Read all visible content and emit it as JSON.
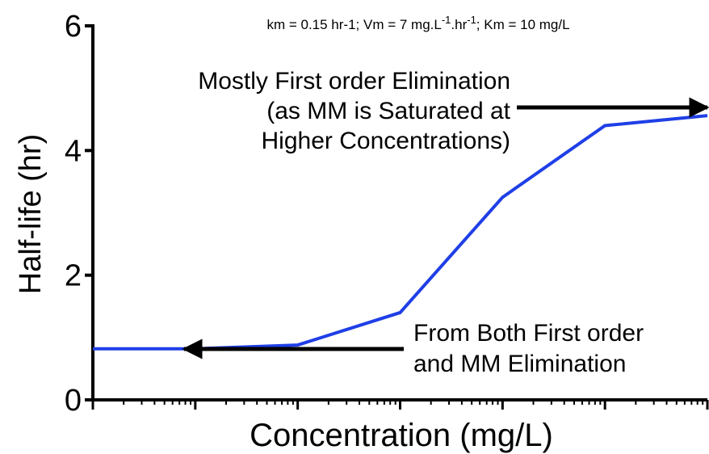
{
  "chart_data": {
    "type": "line",
    "subtitle_parts": [
      "km = 0.15 hr-1; Vm = 7 mg.L",
      "-1",
      ".hr",
      "-1",
      "; Km = 10 mg/L"
    ],
    "x_label": "Concentration (mg/L)",
    "y_label": "Half-life (hr)",
    "x_log": true,
    "categories": [
      null,
      null,
      null,
      null,
      null,
      null,
      null
    ],
    "series": [
      {
        "color": "#1f3fe6",
        "values": [
          0.82,
          0.82,
          0.88,
          1.4,
          3.25,
          4.4,
          4.56
        ]
      }
    ],
    "ylim": [
      0,
      6
    ],
    "yticks": [
      0,
      2,
      4,
      6
    ],
    "annotations": [
      {
        "lines": [
          "Mostly First order Elimination",
          "(as MM is Saturated at",
          "Higher Concentrations)"
        ]
      },
      {
        "lines": [
          "From Both First order",
          "and MM Elimination"
        ]
      }
    ]
  }
}
